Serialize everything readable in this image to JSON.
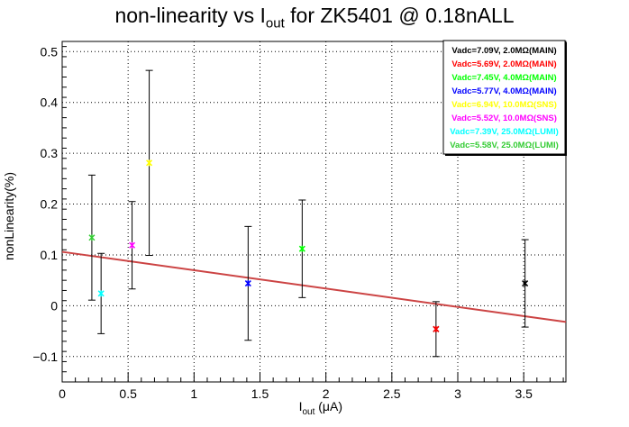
{
  "header": {
    "title_prefix": "non-linearity vs I",
    "title_sub": "out",
    "title_suffix": " for ZK5401 @ 0.18nALL"
  },
  "axes": {
    "xlabel_main": "I",
    "xlabel_sub": "out",
    "xlabel_unit": " (μA)",
    "ylabel": "nonLinearity(%)"
  },
  "chart_data": {
    "type": "scatter",
    "xlim": [
      0,
      3.82
    ],
    "ylim": [
      -0.15,
      0.52
    ],
    "grid": true,
    "legend_position": "top-right",
    "x_ticks": [
      0,
      0.5,
      1,
      1.5,
      2,
      2.5,
      3,
      3.5
    ],
    "x_tick_labels": [
      "0",
      "0.5",
      "1",
      "1.5",
      "2",
      "2.5",
      "3",
      "3.5"
    ],
    "y_ticks": [
      -0.1,
      0,
      0.1,
      0.2,
      0.3,
      0.4,
      0.5
    ],
    "y_tick_labels": [
      "−0.1",
      "0",
      "0.1",
      "0.2",
      "0.3",
      "0.4",
      "0.5"
    ],
    "series": [
      {
        "name": "Vadc=7.09V, 2.0MΩ(MAIN)",
        "color": "#000000",
        "points": [
          {
            "x": 2.835,
            "y": -0.046,
            "err": 0.0
          },
          {
            "x": 3.51,
            "y": 0.044,
            "err": 0.086
          }
        ]
      },
      {
        "name": "Vadc=5.69V, 2.0MΩ(MAIN)",
        "color": "#ff0000",
        "points": [
          {
            "x": 2.835,
            "y": -0.046,
            "err": 0.054
          }
        ]
      },
      {
        "name": "Vadc=7.45V, 4.0MΩ(MAIN)",
        "color": "#00ff00",
        "points": [
          {
            "x": 1.82,
            "y": 0.112,
            "err": 0.096
          }
        ]
      },
      {
        "name": "Vadc=5.77V, 4.0MΩ(MAIN)",
        "color": "#0000ff",
        "points": [
          {
            "x": 1.41,
            "y": 0.044,
            "err": 0.112
          }
        ]
      },
      {
        "name": "Vadc=6.94V, 10.0MΩ(SNS)",
        "color": "#ffff00",
        "points": [
          {
            "x": 0.66,
            "y": 0.281,
            "err": 0.182
          }
        ]
      },
      {
        "name": "Vadc=5.52V, 10.0MΩ(SNS)",
        "color": "#ff00ff",
        "points": [
          {
            "x": 0.53,
            "y": 0.119,
            "err": 0.086
          }
        ]
      },
      {
        "name": "Vadc=7.39V, 25.0MΩ(LUMI)",
        "color": "#00ffff",
        "points": [
          {
            "x": 0.295,
            "y": 0.024,
            "err": 0.079
          }
        ]
      },
      {
        "name": "Vadc=5.58V, 25.0MΩ(LUMI)",
        "color": "#33cc33",
        "points": [
          {
            "x": 0.225,
            "y": 0.134,
            "err": 0.123
          }
        ]
      }
    ],
    "fit_line": {
      "color": "#cc4444",
      "x": [
        0,
        3.82
      ],
      "y": [
        0.106,
        -0.032
      ]
    }
  }
}
